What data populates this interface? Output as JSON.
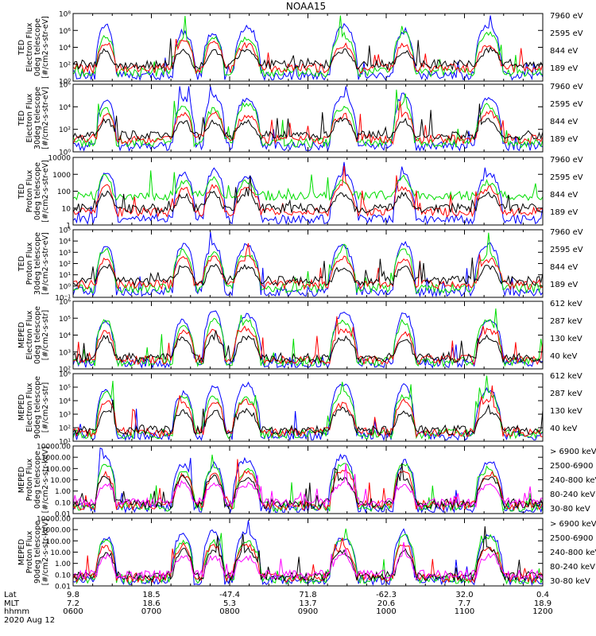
{
  "title": "NOAA15",
  "colors": {
    "black": "#000000",
    "red": "#ff0000",
    "green": "#00dd00",
    "blue": "#0000ff",
    "magenta": "#ff00ff"
  },
  "footer": {
    "row_labels": [
      "Lat",
      "MLT",
      "hhmm",
      "2020 Aug 12"
    ],
    "lat": [
      "9.8",
      "18.5",
      "-47.4",
      "71.8",
      "-62.3",
      "32.0",
      "0.4"
    ],
    "mlt": [
      "7.2",
      "18.6",
      "5.3",
      "13.7",
      "20.6",
      "7.7",
      "18.9"
    ],
    "hhmm": [
      "0600",
      "0700",
      "0800",
      "0900",
      "1000",
      "1100",
      "1200"
    ]
  },
  "chart_data": [
    {
      "type": "line",
      "ylabel": [
        "TED",
        "Electron Flux",
        "0deg telescope",
        "[#/cm2-s-str-eV]"
      ],
      "scale": "log",
      "ylim": [
        1,
        100000000.0
      ],
      "ytick_labels": [
        "10⁰",
        "10²",
        "10⁴",
        "10⁶",
        "10⁸"
      ],
      "legend": [
        {
          "label": "7960 eV",
          "color": "#000000"
        },
        {
          "label": "2595 eV",
          "color": "#ff0000"
        },
        {
          "label": "844 eV",
          "color": "#00dd00"
        },
        {
          "label": "189 eV",
          "color": "#0000ff"
        }
      ]
    },
    {
      "type": "line",
      "ylabel": [
        "TED",
        "Electron Flux",
        "30deg telescope",
        "[#/cm2-s-str-eV]"
      ],
      "scale": "log",
      "ylim": [
        1,
        1000000.0
      ],
      "ytick_labels": [
        "10⁰",
        "10²",
        "10⁴",
        "10⁶"
      ],
      "legend": [
        {
          "label": "7960 eV",
          "color": "#000000"
        },
        {
          "label": "2595 eV",
          "color": "#ff0000"
        },
        {
          "label": "844 eV",
          "color": "#00dd00"
        },
        {
          "label": "189 eV",
          "color": "#0000ff"
        }
      ]
    },
    {
      "type": "line",
      "ylabel": [
        "TED",
        "Proton Flux",
        "0deg telescope",
        "[#/cm2-s-str-eV]"
      ],
      "scale": "log",
      "ylim": [
        1,
        10000
      ],
      "ytick_labels": [
        "1",
        "10",
        "100",
        "1000",
        "10000"
      ],
      "legend": [
        {
          "label": "7960 eV",
          "color": "#000000"
        },
        {
          "label": "2595 eV",
          "color": "#ff0000"
        },
        {
          "label": "844 eV",
          "color": "#00dd00"
        },
        {
          "label": "189 eV",
          "color": "#0000ff"
        }
      ]
    },
    {
      "type": "line",
      "ylabel": [
        "TED",
        "Proton Flux",
        "30deg telescope",
        "[#/cm2-s-str-eV]"
      ],
      "scale": "log",
      "ylim": [
        0.1,
        100000.0
      ],
      "ytick_labels": [
        "10⁻¹",
        "10⁰",
        "10¹",
        "10²",
        "10³",
        "10⁴",
        "10⁵"
      ],
      "legend": [
        {
          "label": "7960 eV",
          "color": "#000000"
        },
        {
          "label": "2595 eV",
          "color": "#ff0000"
        },
        {
          "label": "844 eV",
          "color": "#00dd00"
        },
        {
          "label": "189 eV",
          "color": "#0000ff"
        }
      ]
    },
    {
      "type": "line",
      "ylabel": [
        "MEPED",
        "Electron Flux",
        "0deg telescope",
        "[#/cm2-s-str]"
      ],
      "scale": "log",
      "ylim": [
        100,
        1000000.0
      ],
      "ytick_labels": [
        "10²",
        "10³",
        "10⁴",
        "10⁵",
        "10⁶"
      ],
      "legend": [
        {
          "label": "612 keV",
          "color": "#000000"
        },
        {
          "label": "287 keV",
          "color": "#ff0000"
        },
        {
          "label": "130 keV",
          "color": "#00dd00"
        },
        {
          "label": "40 keV",
          "color": "#0000ff"
        }
      ]
    },
    {
      "type": "line",
      "ylabel": [
        "MEPED",
        "Electron Flux",
        "90deg telescope",
        "[#/cm2-s-str]"
      ],
      "scale": "log",
      "ylim": [
        10,
        1000000.0
      ],
      "ytick_labels": [
        "10¹",
        "10²",
        "10³",
        "10⁴",
        "10⁵",
        "10⁶"
      ],
      "legend": [
        {
          "label": "612 keV",
          "color": "#000000"
        },
        {
          "label": "287 keV",
          "color": "#ff0000"
        },
        {
          "label": "130 keV",
          "color": "#00dd00"
        },
        {
          "label": "40 keV",
          "color": "#0000ff"
        }
      ]
    },
    {
      "type": "line",
      "ylabel": [
        "MEPED",
        "Proton Flux",
        "0deg telescope",
        "[#/cm2-s-str-keV]"
      ],
      "scale": "log",
      "ylim": [
        0.01,
        10000
      ],
      "ytick_labels": [
        "0.01",
        "0.10",
        "1.00",
        "10.00",
        "100.00",
        "1000.00",
        "10000.00"
      ],
      "legend": [
        {
          "label": "> 6900 keV",
          "color": "#ff00ff"
        },
        {
          "label": "2500-6900",
          "color": "#000000"
        },
        {
          "label": "240-800 keV",
          "color": "#ff0000"
        },
        {
          "label": "80-240 keV",
          "color": "#00dd00"
        },
        {
          "label": "30-80 keV",
          "color": "#0000ff"
        }
      ]
    },
    {
      "type": "line",
      "ylabel": [
        "MEPED",
        "Proton Flux",
        "90deg telescope",
        "[#/cm2-s-str-keV]"
      ],
      "scale": "log",
      "ylim": [
        0.01,
        10000
      ],
      "ytick_labels": [
        "0.01",
        "0.10",
        "1.00",
        "10.00",
        "100.00",
        "1000.00",
        "10000.00"
      ],
      "legend": [
        {
          "label": "> 6900 keV",
          "color": "#ff00ff"
        },
        {
          "label": "2500-6900",
          "color": "#000000"
        },
        {
          "label": "240-800 keV",
          "color": "#ff0000"
        },
        {
          "label": "80-240 keV",
          "color": "#00dd00"
        },
        {
          "label": "30-80 keV",
          "color": "#0000ff"
        }
      ]
    }
  ]
}
